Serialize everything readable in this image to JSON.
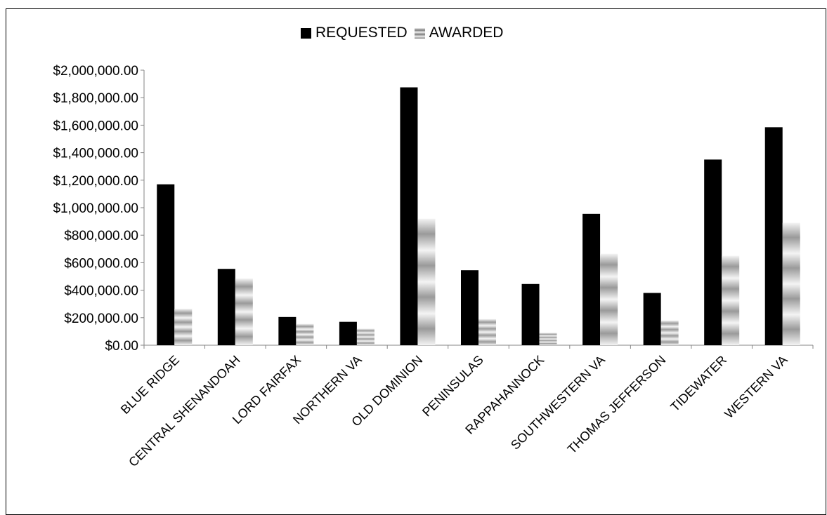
{
  "chart_data": {
    "type": "bar",
    "title": "",
    "xlabel": "",
    "ylabel": "",
    "ylim": [
      0,
      2000000
    ],
    "ytick_values": [
      0,
      200000,
      400000,
      600000,
      800000,
      1000000,
      1200000,
      1400000,
      1600000,
      1800000,
      2000000
    ],
    "ytick_labels": [
      "$0.00",
      "$200,000.00",
      "$400,000.00",
      "$600,000.00",
      "$800,000.00",
      "$1,000,000.00",
      "$1,200,000.00",
      "$1,400,000.00",
      "$1,600,000.00",
      "$1,800,000.00",
      "$2,000,000.00"
    ],
    "grid": false,
    "legend_position": "top-center",
    "categories": [
      "BLUE RIDGE",
      "CENTRAL SHENANDOAH",
      "LORD FAIRFAX",
      "NORTHERN VA",
      "OLD DOMINION",
      "PENINSULAS",
      "RAPPAHANNOCK",
      "SOUTHWESTERN VA",
      "THOMAS JEFFERSON",
      "TIDEWATER",
      "WESTERN VA"
    ],
    "series": [
      {
        "name": "REQUESTED",
        "color": "#000000",
        "values": [
          1170000,
          555000,
          205000,
          170000,
          1875000,
          545000,
          445000,
          955000,
          380000,
          1350000,
          1585000
        ]
      },
      {
        "name": "AWARDED",
        "color": "#9a9a9a",
        "values": [
          265000,
          485000,
          155000,
          120000,
          920000,
          190000,
          90000,
          665000,
          180000,
          650000,
          890000
        ]
      }
    ]
  }
}
